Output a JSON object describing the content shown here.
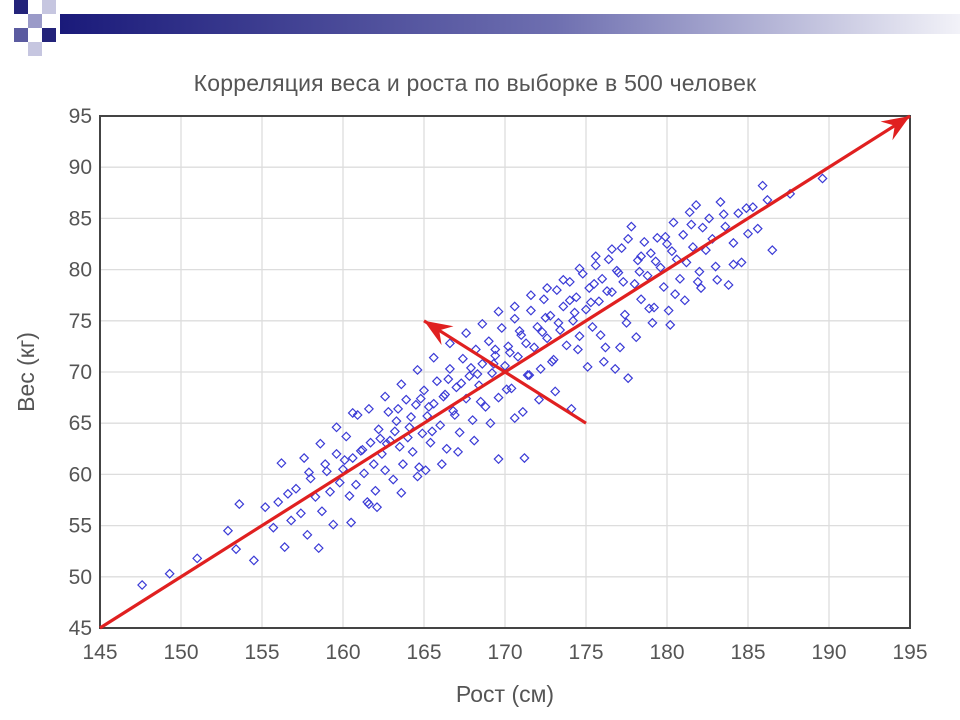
{
  "chart_data": {
    "type": "scatter",
    "title": "Корреляция веса и роста по выборке в 500 человек",
    "xlabel": "Рост (см)",
    "ylabel": "Вес (кг)",
    "xlim": [
      145,
      195
    ],
    "ylim": [
      45,
      95
    ],
    "xticks": [
      "145",
      "150",
      "155",
      "160",
      "165",
      "170",
      "175",
      "180",
      "185",
      "190",
      "195"
    ],
    "yticks": [
      "45",
      "50",
      "55",
      "60",
      "65",
      "70",
      "75",
      "80",
      "85",
      "90",
      "95"
    ],
    "grid": true,
    "point_color": "#3b3bd6",
    "line_color": "#e02020",
    "points": [
      [
        147.6,
        49.2
      ],
      [
        149.3,
        50.3
      ],
      [
        151.0,
        51.8
      ],
      [
        152.9,
        54.5
      ],
      [
        153.4,
        52.7
      ],
      [
        153.6,
        57.1
      ],
      [
        154.5,
        51.6
      ],
      [
        155.2,
        56.8
      ],
      [
        155.7,
        54.8
      ],
      [
        156.0,
        57.3
      ],
      [
        156.2,
        61.1
      ],
      [
        156.4,
        52.9
      ],
      [
        156.8,
        55.5
      ],
      [
        157.1,
        58.6
      ],
      [
        157.4,
        56.2
      ],
      [
        157.8,
        54.1
      ],
      [
        158.0,
        59.6
      ],
      [
        158.3,
        57.8
      ],
      [
        158.7,
        56.4
      ],
      [
        158.9,
        61.0
      ],
      [
        159.2,
        58.3
      ],
      [
        159.4,
        55.1
      ],
      [
        159.6,
        62.0
      ],
      [
        159.8,
        59.2
      ],
      [
        160.0,
        60.5
      ],
      [
        160.2,
        63.7
      ],
      [
        160.4,
        57.9
      ],
      [
        160.6,
        61.6
      ],
      [
        160.8,
        59.0
      ],
      [
        160.9,
        65.8
      ],
      [
        161.1,
        62.3
      ],
      [
        161.3,
        60.1
      ],
      [
        161.5,
        57.3
      ],
      [
        161.7,
        63.1
      ],
      [
        161.9,
        61.0
      ],
      [
        162.0,
        58.4
      ],
      [
        162.2,
        64.4
      ],
      [
        162.4,
        62.0
      ],
      [
        162.6,
        60.4
      ],
      [
        162.8,
        66.1
      ],
      [
        162.9,
        63.3
      ],
      [
        163.1,
        59.5
      ],
      [
        163.3,
        65.2
      ],
      [
        163.5,
        62.7
      ],
      [
        163.7,
        61.0
      ],
      [
        163.9,
        67.3
      ],
      [
        164.1,
        64.6
      ],
      [
        164.3,
        62.2
      ],
      [
        164.5,
        66.8
      ],
      [
        164.7,
        60.7
      ],
      [
        164.9,
        64.0
      ],
      [
        165.0,
        68.2
      ],
      [
        165.2,
        65.7
      ],
      [
        165.4,
        63.1
      ],
      [
        165.6,
        66.9
      ],
      [
        165.8,
        69.1
      ],
      [
        166.0,
        64.8
      ],
      [
        166.2,
        67.6
      ],
      [
        166.4,
        62.5
      ],
      [
        166.6,
        70.3
      ],
      [
        166.8,
        66.2
      ],
      [
        167.0,
        68.5
      ],
      [
        167.2,
        64.1
      ],
      [
        167.4,
        71.3
      ],
      [
        167.6,
        67.4
      ],
      [
        167.8,
        69.6
      ],
      [
        168.0,
        65.3
      ],
      [
        168.2,
        72.2
      ],
      [
        168.4,
        68.7
      ],
      [
        168.6,
        70.8
      ],
      [
        168.8,
        66.6
      ],
      [
        169.0,
        73.0
      ],
      [
        169.2,
        69.9
      ],
      [
        169.4,
        71.6
      ],
      [
        169.6,
        67.5
      ],
      [
        169.8,
        74.3
      ],
      [
        170.0,
        70.6
      ],
      [
        170.2,
        72.5
      ],
      [
        170.4,
        68.4
      ],
      [
        170.6,
        75.2
      ],
      [
        170.8,
        71.5
      ],
      [
        171.0,
        73.6
      ],
      [
        171.2,
        61.6
      ],
      [
        171.4,
        69.7
      ],
      [
        171.6,
        76.0
      ],
      [
        171.8,
        72.4
      ],
      [
        172.0,
        74.4
      ],
      [
        172.2,
        70.3
      ],
      [
        172.4,
        77.1
      ],
      [
        172.6,
        73.3
      ],
      [
        172.8,
        75.5
      ],
      [
        173.0,
        71.2
      ],
      [
        173.2,
        78.0
      ],
      [
        173.4,
        74.1
      ],
      [
        173.6,
        76.4
      ],
      [
        173.8,
        72.6
      ],
      [
        174.0,
        78.8
      ],
      [
        174.2,
        75.0
      ],
      [
        174.4,
        77.3
      ],
      [
        174.6,
        73.5
      ],
      [
        174.8,
        79.6
      ],
      [
        175.0,
        76.1
      ],
      [
        175.2,
        78.2
      ],
      [
        175.4,
        74.4
      ],
      [
        175.6,
        80.4
      ],
      [
        175.8,
        76.9
      ],
      [
        176.0,
        79.1
      ],
      [
        176.2,
        72.4
      ],
      [
        176.4,
        81.0
      ],
      [
        176.6,
        77.8
      ],
      [
        176.8,
        70.3
      ],
      [
        177.0,
        79.7
      ],
      [
        177.2,
        82.1
      ],
      [
        177.4,
        75.6
      ],
      [
        177.6,
        69.4
      ],
      [
        177.8,
        84.2
      ],
      [
        178.0,
        78.6
      ],
      [
        178.2,
        80.9
      ],
      [
        178.4,
        77.1
      ],
      [
        178.6,
        82.7
      ],
      [
        178.8,
        79.4
      ],
      [
        179.0,
        81.6
      ],
      [
        179.2,
        76.3
      ],
      [
        179.4,
        83.1
      ],
      [
        179.6,
        80.2
      ],
      [
        179.8,
        78.3
      ],
      [
        180.0,
        82.5
      ],
      [
        180.2,
        74.6
      ],
      [
        180.4,
        84.6
      ],
      [
        180.6,
        81.0
      ],
      [
        180.8,
        79.1
      ],
      [
        181.0,
        83.4
      ],
      [
        181.2,
        80.7
      ],
      [
        181.4,
        85.6
      ],
      [
        181.6,
        82.2
      ],
      [
        181.8,
        86.3
      ],
      [
        182.0,
        79.8
      ],
      [
        182.2,
        84.1
      ],
      [
        182.4,
        81.9
      ],
      [
        182.6,
        85.0
      ],
      [
        182.8,
        83.0
      ],
      [
        183.0,
        80.3
      ],
      [
        183.3,
        86.6
      ],
      [
        183.6,
        84.2
      ],
      [
        183.8,
        78.5
      ],
      [
        184.1,
        82.6
      ],
      [
        184.4,
        85.5
      ],
      [
        184.6,
        80.7
      ],
      [
        185.0,
        83.5
      ],
      [
        185.3,
        86.1
      ],
      [
        185.6,
        84.0
      ],
      [
        185.9,
        88.2
      ],
      [
        186.2,
        86.8
      ],
      [
        186.5,
        81.9
      ],
      [
        187.6,
        87.4
      ],
      [
        189.6,
        88.9
      ],
      [
        158.5,
        52.8
      ],
      [
        160.5,
        55.3
      ],
      [
        161.6,
        57.1
      ],
      [
        162.1,
        56.8
      ],
      [
        163.6,
        58.2
      ],
      [
        164.6,
        59.8
      ],
      [
        165.1,
        60.4
      ],
      [
        166.1,
        61.0
      ],
      [
        167.1,
        62.2
      ],
      [
        168.1,
        63.3
      ],
      [
        169.1,
        65.0
      ],
      [
        169.6,
        61.5
      ],
      [
        170.6,
        65.5
      ],
      [
        171.1,
        66.1
      ],
      [
        172.1,
        67.3
      ],
      [
        173.1,
        68.1
      ],
      [
        174.1,
        66.4
      ],
      [
        175.1,
        70.5
      ],
      [
        176.1,
        71.0
      ],
      [
        177.1,
        72.4
      ],
      [
        178.1,
        73.4
      ],
      [
        179.1,
        74.8
      ],
      [
        180.1,
        76.0
      ],
      [
        181.1,
        77.0
      ],
      [
        182.1,
        78.2
      ],
      [
        183.1,
        79.0
      ],
      [
        184.1,
        80.5
      ],
      [
        157.6,
        61.6
      ],
      [
        158.6,
        63.0
      ],
      [
        159.6,
        64.6
      ],
      [
        160.6,
        66.0
      ],
      [
        161.6,
        66.4
      ],
      [
        162.6,
        67.6
      ],
      [
        163.6,
        68.8
      ],
      [
        164.6,
        70.2
      ],
      [
        165.6,
        71.4
      ],
      [
        166.6,
        72.8
      ],
      [
        167.6,
        73.8
      ],
      [
        168.6,
        74.7
      ],
      [
        169.6,
        75.9
      ],
      [
        170.6,
        76.4
      ],
      [
        171.6,
        77.5
      ],
      [
        172.6,
        78.2
      ],
      [
        173.6,
        79.0
      ],
      [
        174.6,
        80.1
      ],
      [
        175.6,
        81.3
      ],
      [
        176.6,
        82.0
      ],
      [
        177.6,
        83.0
      ],
      [
        162.3,
        63.5
      ],
      [
        163.2,
        64.2
      ],
      [
        164.2,
        65.6
      ],
      [
        165.3,
        66.6
      ],
      [
        166.3,
        67.8
      ],
      [
        167.3,
        68.9
      ],
      [
        168.3,
        69.8
      ],
      [
        169.3,
        70.8
      ],
      [
        170.3,
        71.9
      ],
      [
        171.3,
        72.8
      ],
      [
        172.3,
        73.9
      ],
      [
        173.3,
        74.8
      ],
      [
        174.3,
        75.8
      ],
      [
        175.3,
        76.8
      ],
      [
        176.3,
        77.9
      ],
      [
        177.3,
        78.8
      ],
      [
        178.3,
        79.8
      ],
      [
        179.3,
        80.8
      ],
      [
        180.3,
        81.8
      ],
      [
        159.0,
        60.3
      ],
      [
        160.1,
        61.4
      ],
      [
        161.2,
        62.4
      ],
      [
        162.7,
        63.0
      ],
      [
        164.0,
        63.6
      ],
      [
        165.5,
        64.2
      ],
      [
        166.9,
        65.8
      ],
      [
        168.5,
        67.1
      ],
      [
        170.1,
        68.3
      ],
      [
        171.5,
        69.7
      ],
      [
        172.9,
        71.0
      ],
      [
        174.5,
        72.2
      ],
      [
        175.9,
        73.6
      ],
      [
        177.5,
        74.8
      ],
      [
        178.9,
        76.2
      ],
      [
        180.5,
        77.6
      ],
      [
        181.9,
        78.8
      ],
      [
        156.6,
        58.1
      ],
      [
        157.9,
        60.2
      ],
      [
        163.4,
        66.4
      ],
      [
        164.8,
        67.4
      ],
      [
        166.5,
        69.3
      ],
      [
        167.9,
        70.4
      ],
      [
        169.4,
        72.2
      ],
      [
        170.9,
        74.0
      ],
      [
        172.5,
        75.3
      ],
      [
        174.0,
        77.0
      ],
      [
        175.5,
        78.6
      ],
      [
        176.9,
        79.9
      ],
      [
        178.4,
        81.3
      ],
      [
        179.9,
        83.2
      ],
      [
        181.5,
        84.4
      ],
      [
        183.5,
        85.4
      ],
      [
        184.9,
        86.0
      ]
    ],
    "lines": [
      {
        "name": "",
        "from": [
          145,
          45
        ],
        "to": [
          195,
          95
        ],
        "arrow": "end"
      },
      {
        "name": "",
        "from": [
          175,
          65
        ],
        "to": [
          165,
          75
        ],
        "arrow": "end"
      }
    ]
  }
}
